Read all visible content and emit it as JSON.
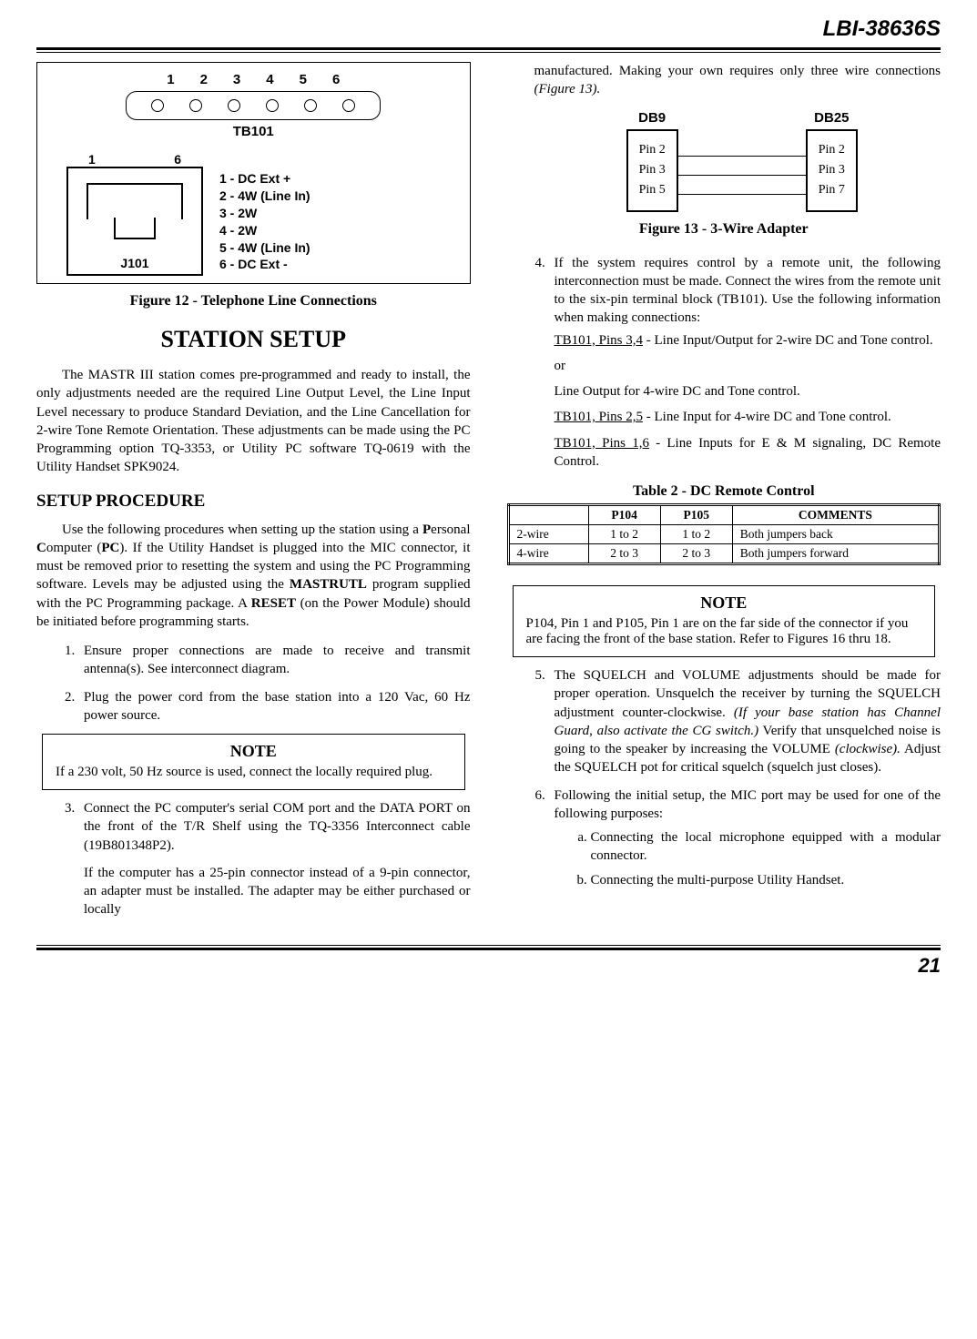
{
  "header": {
    "doc_id": "LBI-38636S"
  },
  "fig12": {
    "tb_numbers": [
      "1",
      "2",
      "3",
      "4",
      "5",
      "6"
    ],
    "tb_label": "TB101",
    "j_numbers_left": "1",
    "j_numbers_right": "6",
    "pin_legend": [
      "1 - DC Ext +",
      "2 - 4W (Line In)",
      "3 - 2W",
      "4 - 2W",
      "5 - 4W (Line In)",
      "6 - DC Ext -"
    ],
    "j_label": "J101",
    "caption": "Figure 12 - Telephone Line Connections"
  },
  "station_setup": {
    "title": "STATION SETUP",
    "para": "The MASTR III station comes pre-programmed and ready to install, the only adjustments needed are the required Line Output Level, the Line Input Level necessary to produce Standard Deviation, and the Line Cancellation for 2-wire Tone Remote Orientation. These adjustments can be made using the PC Programming option TQ-3353, or Utility PC software TQ-0619 with the Utility Handset SPK9024."
  },
  "setup_proc": {
    "title": "SETUP PROCEDURE",
    "intro_html": "Use the following procedures when setting up the station using a <b>P</b>ersonal <b>C</b>omputer (<b>PC</b>). If the Utility Handset is plugged into the MIC connector, it must be removed prior to resetting the system and using the PC Programming software. Levels may be adjusted using the <b>MASTRUTL</b> program supplied with the PC Programming package. A <b>RESET</b> (on the Power Module) should be initiated before programming starts.",
    "items": {
      "s1": "Ensure proper connections are made to receive and transmit antenna(s). See interconnect diagram.",
      "s2": "Plug the power cord from the base station into a 120 Vac, 60 Hz power source.",
      "note1_title": "NOTE",
      "note1_body": "If a 230 volt, 50 Hz source is used, connect the locally required plug.",
      "s3a": "Connect the PC computer's serial COM port and the DATA PORT on the front of the T/R Shelf using the TQ-3356 Interconnect cable (19B801348P2).",
      "s3b": "If the computer has a 25-pin connector instead of a 9-pin connector, an adapter must be installed. The adapter may be either purchased or locally",
      "s3c_html": "manufactured. Making your own requires only three wire connections <i>(Figure 13).</i>"
    }
  },
  "fig13": {
    "left_label": "DB9",
    "left_pins": [
      "Pin 2",
      "Pin 3",
      "Pin 5"
    ],
    "right_label": "DB25",
    "right_pins": [
      "Pin 2",
      "Pin 3",
      "Pin 7"
    ],
    "caption": "Figure 13 - 3-Wire Adapter"
  },
  "step4": {
    "lead": "If the system requires control by a remote unit, the following interconnection must be made. Connect the wires from the remote unit to the six-pin terminal block (TB101). Use the following information when making connections:",
    "l1_u": "TB101, Pins 3,4",
    "l1_rest": " - Line Input/Output for 2-wire DC and Tone control.",
    "or": "or",
    "l2": "Line Output for 4-wire DC and Tone control.",
    "l3_u": "TB101, Pins 2,5",
    "l3_rest": " - Line Input for 4-wire DC and Tone control.",
    "l4_u": "TB101, Pins 1,6",
    "l4_rest": " - Line Inputs for E & M signaling, DC Remote Control."
  },
  "table2": {
    "title": "Table 2 - DC Remote Control",
    "headers": [
      "",
      "P104",
      "P105",
      "COMMENTS"
    ],
    "rows": [
      [
        "2-wire",
        "1 to 2",
        "1 to 2",
        "Both jumpers back"
      ],
      [
        "4-wire",
        "2 to 3",
        "2 to 3",
        "Both jumpers forward"
      ]
    ]
  },
  "note2": {
    "title": "NOTE",
    "body": "P104, Pin 1 and P105, Pin 1 are on the far side of the connector if you are facing the front of the base station. Refer to Figures 16 thru 18."
  },
  "step5_html": "The SQUELCH and VOLUME adjustments should be made for proper operation. Unsquelch the receiver by turning the SQUELCH adjustment counter-clockwise. <i>(If your base station has Channel Guard, also activate the CG switch.)</i> Verify that unsquelched noise is going to the speaker by increasing the VOLUME <i>(clockwise).</i> Adjust the SQUELCH pot for critical squelch (squelch just closes).",
  "step6": {
    "lead": "Following the initial setup, the MIC port may be used for one of the following purposes:",
    "a": "Connecting the local microphone equipped with a modular connector.",
    "b": "Connecting the multi-purpose Utility Handset."
  },
  "page_number": "21"
}
